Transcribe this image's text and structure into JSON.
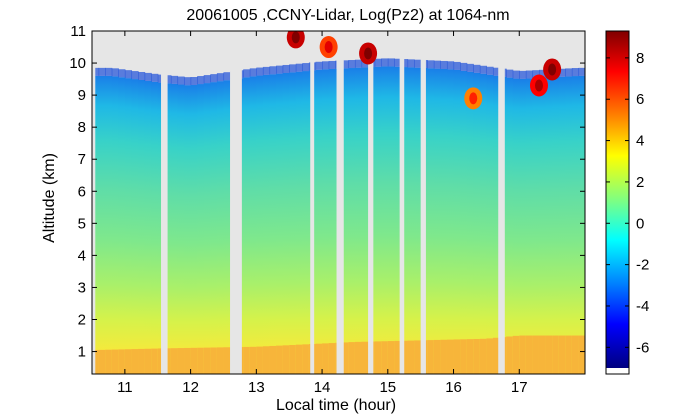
{
  "chart_data": {
    "type": "heatmap",
    "title": "20061005 ,CCNY-Lidar, Log(Pz2) at 1064-nm",
    "xlabel": "Local time (hour)",
    "ylabel": "Altitude (km)",
    "xlim": [
      10.5,
      18.0
    ],
    "ylim": [
      0.3,
      11.0
    ],
    "xticks": [
      11,
      12,
      13,
      14,
      15,
      16,
      17
    ],
    "yticks": [
      1,
      2,
      3,
      4,
      5,
      6,
      7,
      8,
      9,
      10,
      11
    ],
    "colorbar": {
      "colormap": "jet",
      "range": [
        -7,
        9.3
      ],
      "ticks": [
        8,
        6,
        4,
        2,
        0,
        -2,
        -4,
        -6
      ]
    },
    "data_gaps_hours": [
      [
        10.5,
        10.55
      ],
      [
        11.55,
        11.65
      ],
      [
        12.6,
        12.78
      ],
      [
        13.82,
        13.88
      ],
      [
        14.22,
        14.33
      ],
      [
        14.7,
        14.78
      ],
      [
        15.18,
        15.25
      ],
      [
        15.5,
        15.58
      ],
      [
        16.68,
        16.78
      ]
    ],
    "description_points": {
      "boundary_layer_top_km": [
        {
          "x": 10.6,
          "y": 1.05
        },
        {
          "x": 11.6,
          "y": 1.1
        },
        {
          "x": 13.0,
          "y": 1.15
        },
        {
          "x": 14.5,
          "y": 1.3
        },
        {
          "x": 15.5,
          "y": 1.35
        },
        {
          "x": 16.5,
          "y": 1.4
        },
        {
          "x": 17.0,
          "y": 1.5
        },
        {
          "x": 17.9,
          "y": 1.5
        }
      ],
      "signal_top_km": [
        {
          "x": 10.8,
          "y": 9.6
        },
        {
          "x": 11.5,
          "y": 9.4
        },
        {
          "x": 12.0,
          "y": 9.3
        },
        {
          "x": 13.0,
          "y": 9.6
        },
        {
          "x": 14.0,
          "y": 9.8
        },
        {
          "x": 15.0,
          "y": 9.9
        },
        {
          "x": 16.0,
          "y": 9.8
        },
        {
          "x": 17.0,
          "y": 9.5
        },
        {
          "x": 17.9,
          "y": 9.6
        }
      ],
      "cloud_patches": [
        {
          "x": 13.6,
          "y": 10.8,
          "value": 8
        },
        {
          "x": 14.1,
          "y": 10.5,
          "value": 6
        },
        {
          "x": 14.7,
          "y": 10.3,
          "value": 8
        },
        {
          "x": 16.3,
          "y": 8.9,
          "value": 5
        },
        {
          "x": 17.3,
          "y": 9.3,
          "value": 7
        },
        {
          "x": 17.5,
          "y": 9.8,
          "value": 8
        }
      ]
    }
  }
}
